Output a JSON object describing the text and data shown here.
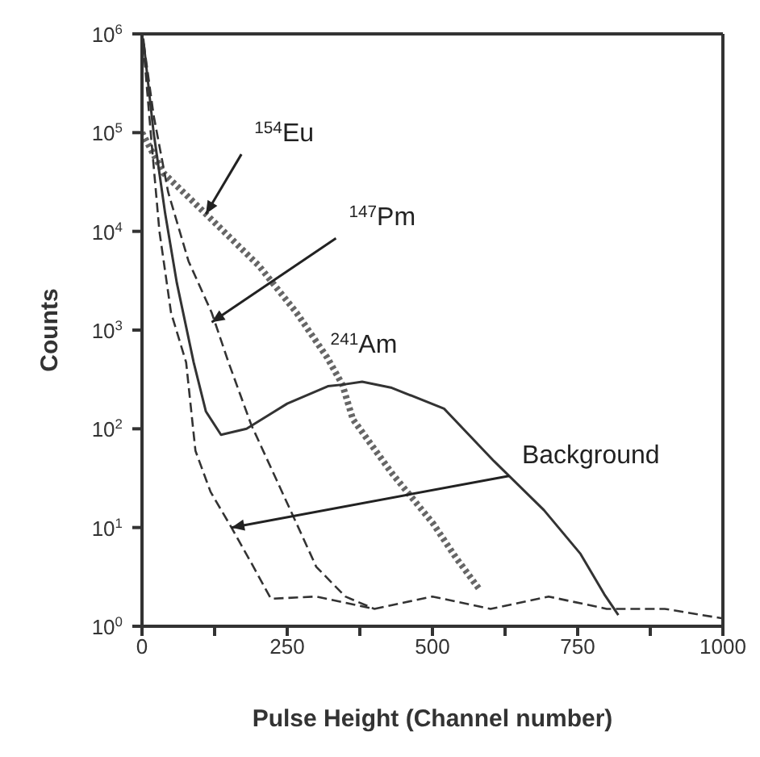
{
  "chart_data": {
    "type": "line",
    "xlabel": "Pulse Height (Channel number)",
    "ylabel": "Counts",
    "log": "y",
    "xlim": [
      0,
      1000
    ],
    "xticks": [
      0,
      {
        "value": 125,
        "label": null
      },
      250,
      {
        "value": 375,
        "label": null
      },
      500,
      {
        "value": 625,
        "label": null
      },
      750,
      {
        "value": 875,
        "label": null
      },
      1000
    ],
    "ylim": [
      1,
      1000000
    ],
    "yticks": [
      {
        "value": 1,
        "label": "10$^{0}$"
      },
      {
        "value": 10,
        "label": "10$^{1}$"
      },
      {
        "value": 100,
        "label": "10$^{2}$"
      },
      {
        "value": 1000,
        "label": "10$^{3}$"
      },
      {
        "value": 10000,
        "label": "10$^{4}$"
      },
      {
        "value": 100000,
        "label": "10$^{5}$"
      },
      {
        "value": 1000000,
        "label": "10$^{6}$"
      }
    ],
    "marker": "none",
    "series": [
      {
        "color": "#666666",
        "line_style": "dotted",
        "x": [
          0,
          37,
          110,
          201,
          266,
          319,
          345,
          363,
          431,
          501,
          540,
          580
        ],
        "values": [
          100000,
          39000,
          15000,
          4500,
          1500,
          525,
          280,
          125,
          35,
          11,
          5,
          2.4
        ]
      },
      {
        "color": "#333333",
        "line_style": "dashed",
        "x": [
          3,
          20,
          45,
          80,
          120,
          149,
          188,
          232,
          266,
          300,
          350,
          400
        ],
        "values": [
          800000,
          150000,
          25000,
          5000,
          1500,
          470,
          110,
          30,
          11,
          4,
          2,
          1.5
        ]
      },
      {
        "color": "#333333",
        "line_style": "solid",
        "x": [
          2,
          20,
          40,
          60,
          89,
          110,
          136,
          180,
          250,
          320,
          345,
          379,
          430,
          520,
          606,
          692,
          755,
          796,
          820
        ],
        "values": [
          900000,
          100000,
          15000,
          3000,
          470,
          150,
          87,
          100,
          180,
          270,
          280,
          300,
          260,
          160,
          47,
          15,
          5.4,
          2.1,
          1.3
        ]
      },
      {
        "color": "#333333",
        "line_style": "dashed",
        "x": [
          2,
          15,
          30,
          50,
          76,
          92,
          118,
          154,
          188,
          222,
          300,
          400,
          500,
          600,
          700,
          800,
          900,
          1000
        ],
        "values": [
          800000,
          100000,
          10000,
          1500,
          470,
          60,
          23,
          10,
          4.4,
          1.9,
          2,
          1.5,
          2,
          1.5,
          2,
          1.5,
          1.5,
          1.2
        ]
      }
    ],
    "annotations": [
      {
        "text": "$^{154}$Eu",
        "x": 110,
        "y": 15000
      },
      {
        "text": "$^{147}$Pm",
        "x": 120,
        "y": 1200
      },
      {
        "text": "$^{241}$Am",
        "x": 380,
        "y": 300
      },
      {
        "text": "Background",
        "x": 154,
        "y": 10
      }
    ]
  }
}
